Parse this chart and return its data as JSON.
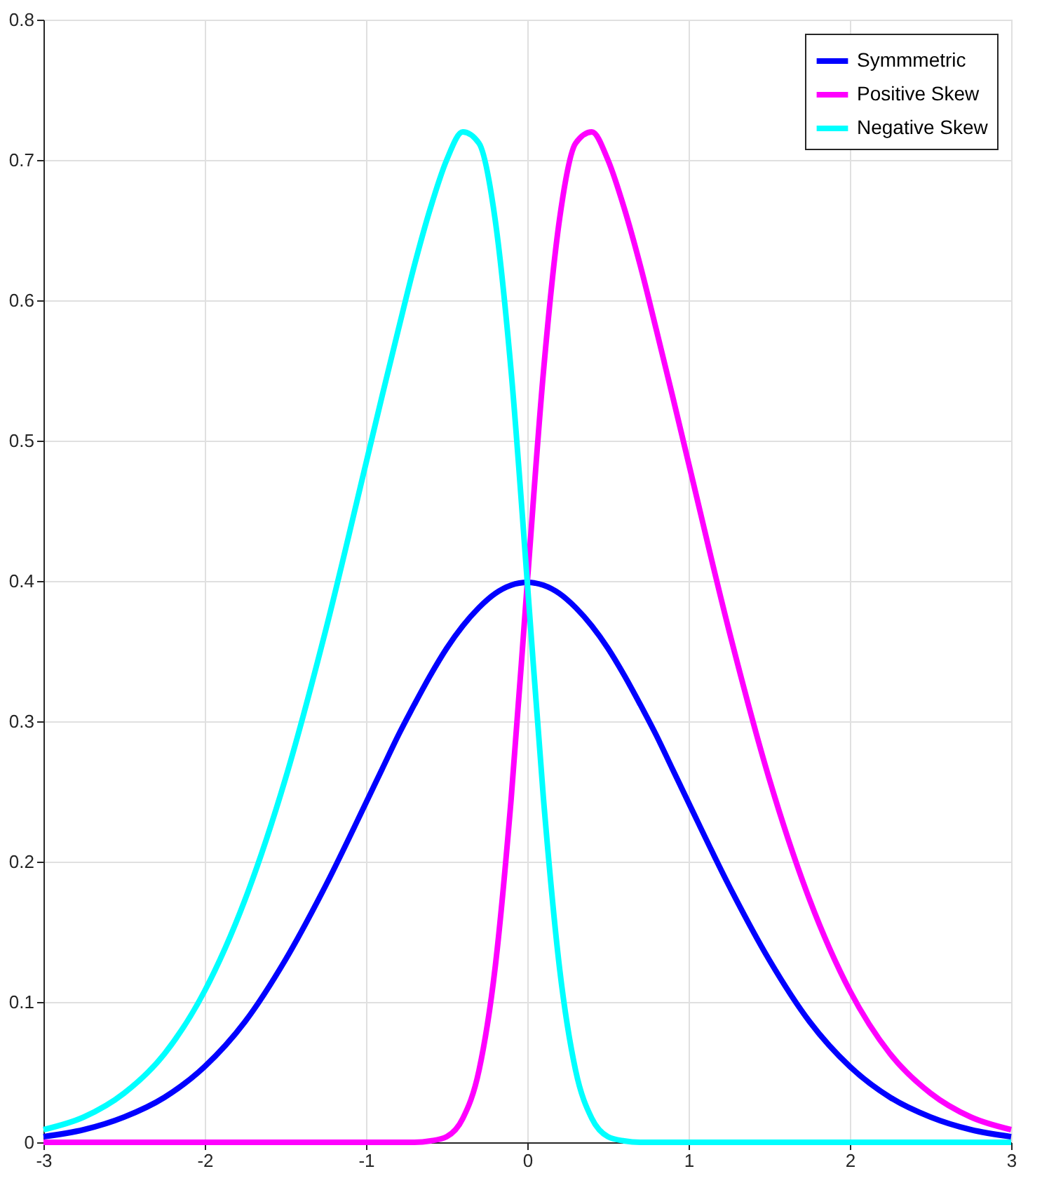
{
  "chart_data": {
    "type": "line",
    "x": [
      -3,
      -2.75,
      -2.5,
      -2.25,
      -2,
      -1.75,
      -1.5,
      -1.25,
      -1,
      -0.9,
      -0.8,
      -0.7,
      -0.6,
      -0.5,
      -0.4,
      -0.3,
      -0.2,
      -0.1,
      0,
      0.1,
      0.2,
      0.3,
      0.4,
      0.5,
      0.6,
      0.7,
      0.8,
      0.9,
      1,
      1.25,
      1.5,
      1.75,
      2,
      2.25,
      2.5,
      2.75,
      3
    ],
    "series": [
      {
        "name": "Symmmetric",
        "color": "#0000ff",
        "values": [
          0.004,
          0.009,
          0.018,
          0.032,
          0.054,
          0.086,
          0.13,
          0.183,
          0.242,
          0.266,
          0.29,
          0.312,
          0.333,
          0.352,
          0.368,
          0.381,
          0.391,
          0.397,
          0.399,
          0.397,
          0.391,
          0.381,
          0.368,
          0.352,
          0.333,
          0.312,
          0.29,
          0.266,
          0.242,
          0.183,
          0.13,
          0.086,
          0.054,
          0.032,
          0.018,
          0.009,
          0.004
        ]
      },
      {
        "name": "Positive Skew",
        "color": "#ff00ff",
        "values": [
          0,
          0,
          0,
          0,
          0,
          0,
          0,
          0,
          0,
          0,
          0,
          0,
          0.001,
          0.004,
          0.017,
          0.051,
          0.124,
          0.245,
          0.399,
          0.549,
          0.658,
          0.712,
          0.72,
          0.7,
          0.666,
          0.625,
          0.579,
          0.532,
          0.484,
          0.365,
          0.259,
          0.173,
          0.108,
          0.063,
          0.035,
          0.018,
          0.009
        ]
      },
      {
        "name": "Negative Skew",
        "color": "#00ffff",
        "values": [
          0.009,
          0.018,
          0.035,
          0.063,
          0.108,
          0.173,
          0.259,
          0.365,
          0.484,
          0.532,
          0.579,
          0.625,
          0.666,
          0.7,
          0.72,
          0.712,
          0.658,
          0.549,
          0.399,
          0.245,
          0.124,
          0.051,
          0.017,
          0.004,
          0.001,
          0,
          0,
          0,
          0,
          0,
          0,
          0,
          0,
          0,
          0,
          0,
          0
        ]
      }
    ],
    "xlim": [
      -3,
      3
    ],
    "xticks": [
      -3,
      -2,
      -1,
      0,
      1,
      2,
      3
    ],
    "ylim": [
      0,
      0.8
    ],
    "yticks": [
      0,
      0.1,
      0.2,
      0.3,
      0.4,
      0.5,
      0.6,
      0.7,
      0.8
    ],
    "grid": true,
    "legend": "top right",
    "line_style": "solid",
    "marker": "none"
  }
}
